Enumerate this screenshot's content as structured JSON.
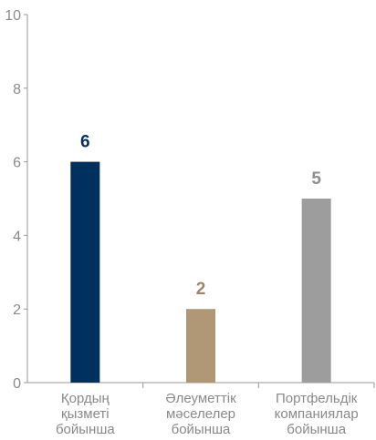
{
  "chart_data": {
    "type": "bar",
    "categories": [
      [
        "Қордың",
        "қызметі",
        "бойынша"
      ],
      [
        "Әлеуметтік",
        "мәселелер",
        "бойынша"
      ],
      [
        "Портфельдік",
        "компаниялар",
        "бойынша"
      ]
    ],
    "values": [
      6,
      2,
      5
    ],
    "bar_colors": [
      "#00305e",
      "#b09775",
      "#9d9d9d"
    ],
    "label_colors": [
      "#00305e",
      "#9f8766",
      "#8f8f8f"
    ],
    "ylim": [
      0,
      10
    ],
    "yticks": [
      0,
      2,
      4,
      6,
      8,
      10
    ],
    "title": "",
    "xlabel": "",
    "ylabel": "",
    "grid": false,
    "legend": "none"
  }
}
